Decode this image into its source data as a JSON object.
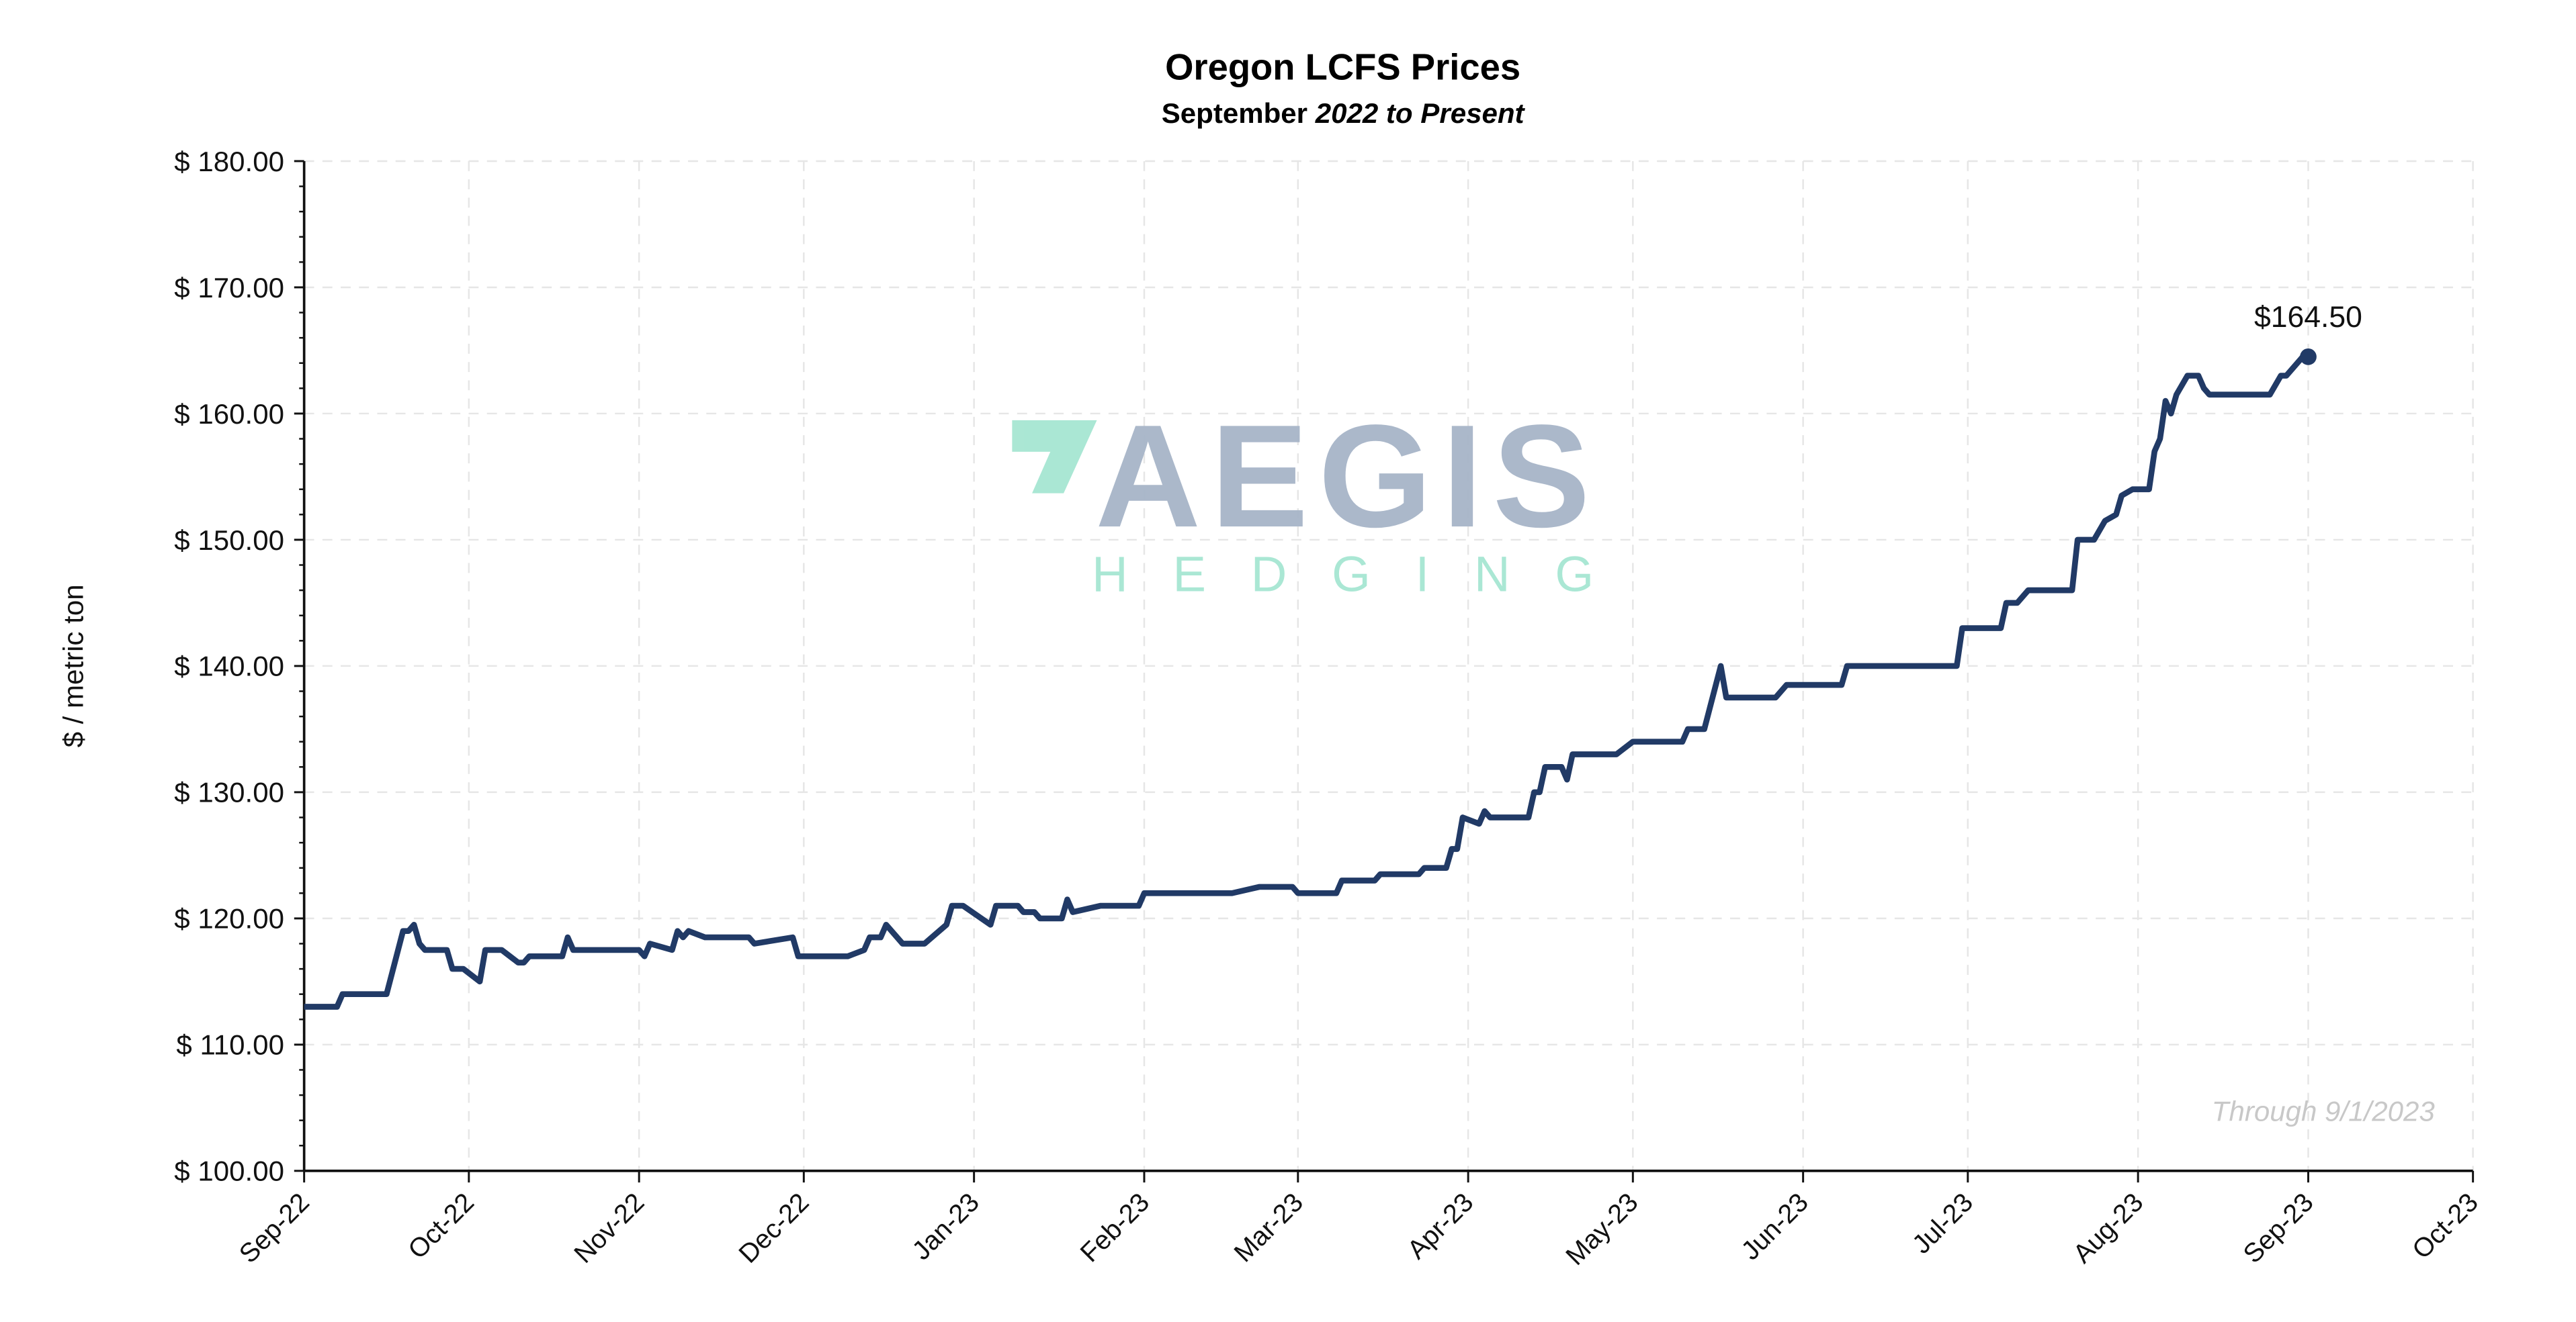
{
  "chart_data": {
    "type": "line",
    "title": "Oregon LCFS Prices",
    "subtitle_regular": "September ",
    "subtitle_italic": "2022 to Present",
    "ylabel": "$ / metric ton",
    "xlabel": "",
    "ylim": [
      100,
      180
    ],
    "yticks": [
      100,
      110,
      120,
      130,
      140,
      150,
      160,
      170,
      180
    ],
    "ytick_labels": [
      "$ 100.00",
      "$ 110.00",
      "$ 120.00",
      "$ 130.00",
      "$ 140.00",
      "$ 150.00",
      "$ 160.00",
      "$ 170.00",
      "$ 180.00"
    ],
    "xlim": [
      "2022-09-01",
      "2023-10-01"
    ],
    "xticks": [
      "2022-09-01",
      "2022-10-01",
      "2022-11-01",
      "2022-12-01",
      "2023-01-01",
      "2023-02-01",
      "2023-03-01",
      "2023-04-01",
      "2023-05-01",
      "2023-06-01",
      "2023-07-01",
      "2023-08-01",
      "2023-09-01",
      "2023-10-01"
    ],
    "xtick_labels": [
      "Sep-22",
      "Oct-22",
      "Nov-22",
      "Dec-22",
      "Jan-23",
      "Feb-23",
      "Mar-23",
      "Apr-23",
      "May-23",
      "Jun-23",
      "Jul-23",
      "Aug-23",
      "Sep-23",
      "Oct-23"
    ],
    "grid": true,
    "line_color": "#213a66",
    "last_value_label": "$164.50",
    "annotation": "Through 9/1/2023",
    "series": [
      {
        "points": [
          [
            "2022-09-01",
            113
          ],
          [
            "2022-09-07",
            113
          ],
          [
            "2022-09-08",
            114
          ],
          [
            "2022-09-16",
            114
          ],
          [
            "2022-09-19",
            119
          ],
          [
            "2022-09-20",
            119
          ],
          [
            "2022-09-21",
            119.5
          ],
          [
            "2022-09-22",
            118
          ],
          [
            "2022-09-23",
            117.5
          ],
          [
            "2022-09-27",
            117.5
          ],
          [
            "2022-09-28",
            116
          ],
          [
            "2022-09-30",
            116
          ],
          [
            "2022-10-03",
            115
          ],
          [
            "2022-10-04",
            117.5
          ],
          [
            "2022-10-07",
            117.5
          ],
          [
            "2022-10-10",
            116.5
          ],
          [
            "2022-10-11",
            116.5
          ],
          [
            "2022-10-12",
            117
          ],
          [
            "2022-10-18",
            117
          ],
          [
            "2022-10-19",
            118.5
          ],
          [
            "2022-10-20",
            117.5
          ],
          [
            "2022-11-01",
            117.5
          ],
          [
            "2022-11-02",
            117
          ],
          [
            "2022-11-03",
            118
          ],
          [
            "2022-11-07",
            117.5
          ],
          [
            "2022-11-08",
            119
          ],
          [
            "2022-11-09",
            118.5
          ],
          [
            "2022-11-10",
            119
          ],
          [
            "2022-11-13",
            118.5
          ],
          [
            "2022-11-21",
            118.5
          ],
          [
            "2022-11-22",
            118
          ],
          [
            "2022-11-29",
            118.5
          ],
          [
            "2022-11-30",
            117
          ],
          [
            "2022-12-09",
            117
          ],
          [
            "2022-12-12",
            117.5
          ],
          [
            "2022-12-13",
            118.5
          ],
          [
            "2022-12-15",
            118.5
          ],
          [
            "2022-12-16",
            119.5
          ],
          [
            "2022-12-19",
            118
          ],
          [
            "2022-12-23",
            118
          ],
          [
            "2022-12-27",
            119.5
          ],
          [
            "2022-12-28",
            121
          ],
          [
            "2022-12-30",
            121
          ],
          [
            "2023-01-04",
            119.5
          ],
          [
            "2023-01-05",
            121
          ],
          [
            "2023-01-09",
            121
          ],
          [
            "2023-01-10",
            120.5
          ],
          [
            "2023-01-12",
            120.5
          ],
          [
            "2023-01-13",
            120
          ],
          [
            "2023-01-17",
            120
          ],
          [
            "2023-01-18",
            121.5
          ],
          [
            "2023-01-19",
            120.5
          ],
          [
            "2023-01-24",
            121
          ],
          [
            "2023-01-31",
            121
          ],
          [
            "2023-02-01",
            122
          ],
          [
            "2023-02-17",
            122
          ],
          [
            "2023-02-22",
            122.5
          ],
          [
            "2023-02-28",
            122.5
          ],
          [
            "2023-03-01",
            122
          ],
          [
            "2023-03-08",
            122
          ],
          [
            "2023-03-09",
            123
          ],
          [
            "2023-03-15",
            123
          ],
          [
            "2023-03-16",
            123.5
          ],
          [
            "2023-03-23",
            123.5
          ],
          [
            "2023-03-24",
            124
          ],
          [
            "2023-03-28",
            124
          ],
          [
            "2023-03-29",
            125.5
          ],
          [
            "2023-03-30",
            125.5
          ],
          [
            "2023-03-31",
            128
          ],
          [
            "2023-04-03",
            127.5
          ],
          [
            "2023-04-04",
            128.5
          ],
          [
            "2023-04-05",
            128
          ],
          [
            "2023-04-12",
            128
          ],
          [
            "2023-04-13",
            130
          ],
          [
            "2023-04-14",
            130
          ],
          [
            "2023-04-15",
            132
          ],
          [
            "2023-04-18",
            132
          ],
          [
            "2023-04-19",
            131
          ],
          [
            "2023-04-20",
            133
          ],
          [
            "2023-04-28",
            133
          ],
          [
            "2023-05-01",
            134
          ],
          [
            "2023-05-10",
            134
          ],
          [
            "2023-05-11",
            135
          ],
          [
            "2023-05-14",
            135
          ],
          [
            "2023-05-17",
            140
          ],
          [
            "2023-05-18",
            137.5
          ],
          [
            "2023-05-27",
            137.5
          ],
          [
            "2023-05-29",
            138.5
          ],
          [
            "2023-06-08",
            138.5
          ],
          [
            "2023-06-09",
            140
          ],
          [
            "2023-06-29",
            140
          ],
          [
            "2023-06-30",
            143
          ],
          [
            "2023-07-07",
            143
          ],
          [
            "2023-07-08",
            145
          ],
          [
            "2023-07-10",
            145
          ],
          [
            "2023-07-12",
            146
          ],
          [
            "2023-07-20",
            146
          ],
          [
            "2023-07-21",
            150
          ],
          [
            "2023-07-24",
            150
          ],
          [
            "2023-07-26",
            151.5
          ],
          [
            "2023-07-28",
            152
          ],
          [
            "2023-07-29",
            153.5
          ],
          [
            "2023-07-31",
            154
          ],
          [
            "2023-08-03",
            154
          ],
          [
            "2023-08-04",
            157
          ],
          [
            "2023-08-05",
            158
          ],
          [
            "2023-08-06",
            161
          ],
          [
            "2023-08-07",
            160
          ],
          [
            "2023-08-08",
            161.5
          ],
          [
            "2023-08-10",
            163
          ],
          [
            "2023-08-12",
            163
          ],
          [
            "2023-08-13",
            162
          ],
          [
            "2023-08-14",
            161.5
          ],
          [
            "2023-08-25",
            161.5
          ],
          [
            "2023-08-27",
            163
          ],
          [
            "2023-08-28",
            163
          ],
          [
            "2023-08-31",
            164.5
          ],
          [
            "2023-09-01",
            164.5
          ]
        ]
      }
    ]
  },
  "watermark": {
    "logo_word": "AEGIS",
    "logo_sub": "HEDGING",
    "colors": {
      "word": "#a7b5c8",
      "accent": "#a6e6d2"
    }
  }
}
